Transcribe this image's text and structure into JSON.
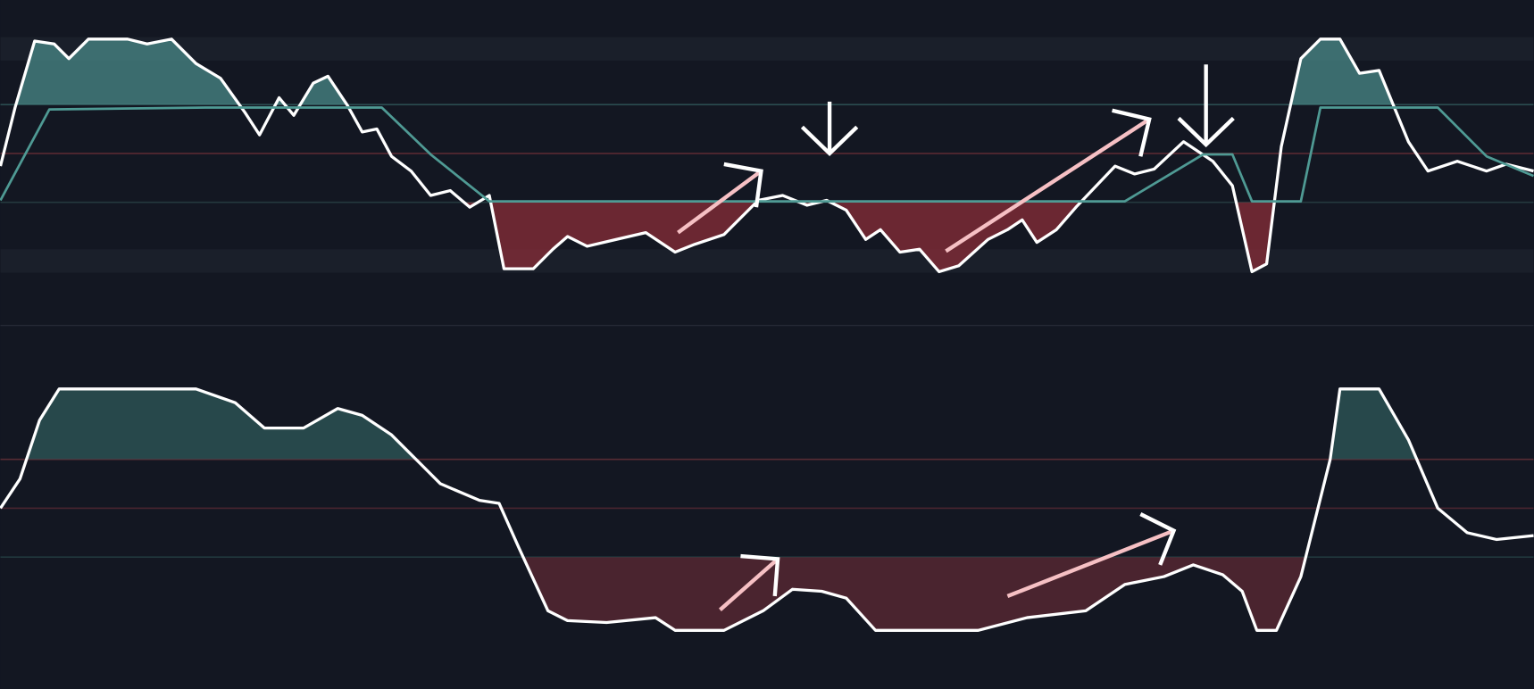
{
  "chart_data": [
    {
      "type": "line",
      "xlim": [
        0,
        1568
      ],
      "ylim": [
        0,
        100
      ],
      "levels": [
        70,
        50,
        30
      ],
      "level_colors": [
        "#2a4a4e",
        "#5a2a33",
        "#1f3a3e"
      ],
      "upper_fill": "#4a8a88",
      "lower_fill": "#8a2d38",
      "series": [
        {
          "color": "#ffffff",
          "x": [
            0,
            15,
            35,
            55,
            70,
            90,
            130,
            150,
            175,
            200,
            225,
            250,
            265,
            285,
            300,
            320,
            335,
            355,
            370,
            385,
            400,
            420,
            440,
            460,
            480,
            500,
            515,
            545,
            565,
            580,
            600,
            630,
            660,
            690,
            710,
            740,
            775,
            800,
            825,
            845,
            865,
            885,
            900,
            920,
            940,
            960,
            980,
            1010,
            1030,
            1045,
            1060,
            1080,
            1100,
            1140,
            1160,
            1180,
            1210,
            1240,
            1260,
            1280,
            1295,
            1310,
            1330,
            1350,
            1370,
            1390,
            1410,
            1440,
            1460,
            1490,
            1520,
            1540,
            1568
          ],
          "values": [
            44.8,
            68.8,
            96,
            94.8,
            88.8,
            96.8,
            96.8,
            94.8,
            96.8,
            86.8,
            80.8,
            66.8,
            57.6,
            72.8,
            65.6,
            78.8,
            81.6,
            69.6,
            58.8,
            60,
            48.8,
            42.8,
            32.8,
            34.8,
            28,
            32.8,
            2.8,
            2.8,
            10.8,
            16,
            12,
            14.8,
            17.6,
            9.6,
            12.8,
            16.8,
            30.8,
            32.8,
            28.8,
            30.8,
            26.8,
            14.8,
            18.8,
            9.6,
            10.8,
            1.6,
            4,
            14.8,
            18.8,
            22.8,
            13.6,
            18.8,
            28,
            44.8,
            41.6,
            43.6,
            54.8,
            46.8,
            36.8,
            1.6,
            4.8,
            52.8,
            88.8,
            96.8,
            96.8,
            82.8,
            84,
            54.8,
            42.8,
            46.8,
            42.8,
            45.6,
            42.8
          ]
        },
        {
          "color": "#4f9a94",
          "x": [
            0,
            50,
            210,
            390,
            440,
            500,
            620,
            1010,
            1150,
            1230,
            1260,
            1280,
            1330,
            1350,
            1470,
            1520,
            1568
          ],
          "values": [
            30.8,
            68,
            68.8,
            68.8,
            49.6,
            30.4,
            30.4,
            30.4,
            30.4,
            49.6,
            49.6,
            30.4,
            30.4,
            68.8,
            68.8,
            48.8,
            40.8
          ]
        }
      ]
    },
    {
      "type": "line",
      "xlim": [
        0,
        1568
      ],
      "ylim": [
        0,
        100
      ],
      "levels": [
        70,
        50,
        30
      ],
      "level_colors": [
        "#5a2a33",
        "#4a2530",
        "#1f3a3e"
      ],
      "upper_fill": "#2f5a5a",
      "lower_fill": "#5e2a34",
      "series": [
        {
          "color": "#ffffff",
          "x": [
            0,
            20,
            40,
            60,
            200,
            240,
            270,
            310,
            345,
            370,
            400,
            430,
            450,
            490,
            510,
            530,
            560,
            580,
            620,
            670,
            690,
            740,
            780,
            810,
            840,
            865,
            895,
            1000,
            1050,
            1110,
            1150,
            1190,
            1220,
            1250,
            1270,
            1285,
            1305,
            1330,
            1360,
            1370,
            1410,
            1440,
            1470,
            1500,
            1530,
            1568
          ],
          "values": [
            50,
            62,
            86,
            98.8,
            98.8,
            93.2,
            82.8,
            82.8,
            90.8,
            88,
            80,
            68,
            60,
            53.2,
            52,
            34,
            8,
            4,
            3.2,
            5.2,
            0,
            0,
            8,
            16.8,
            16,
            13.2,
            0,
            0,
            5.2,
            8,
            18.8,
            22,
            26.8,
            22.8,
            16,
            0,
            0,
            22,
            70,
            98.8,
            98.8,
            78,
            50,
            40,
            37.2,
            38.8
          ]
        }
      ]
    }
  ]
}
